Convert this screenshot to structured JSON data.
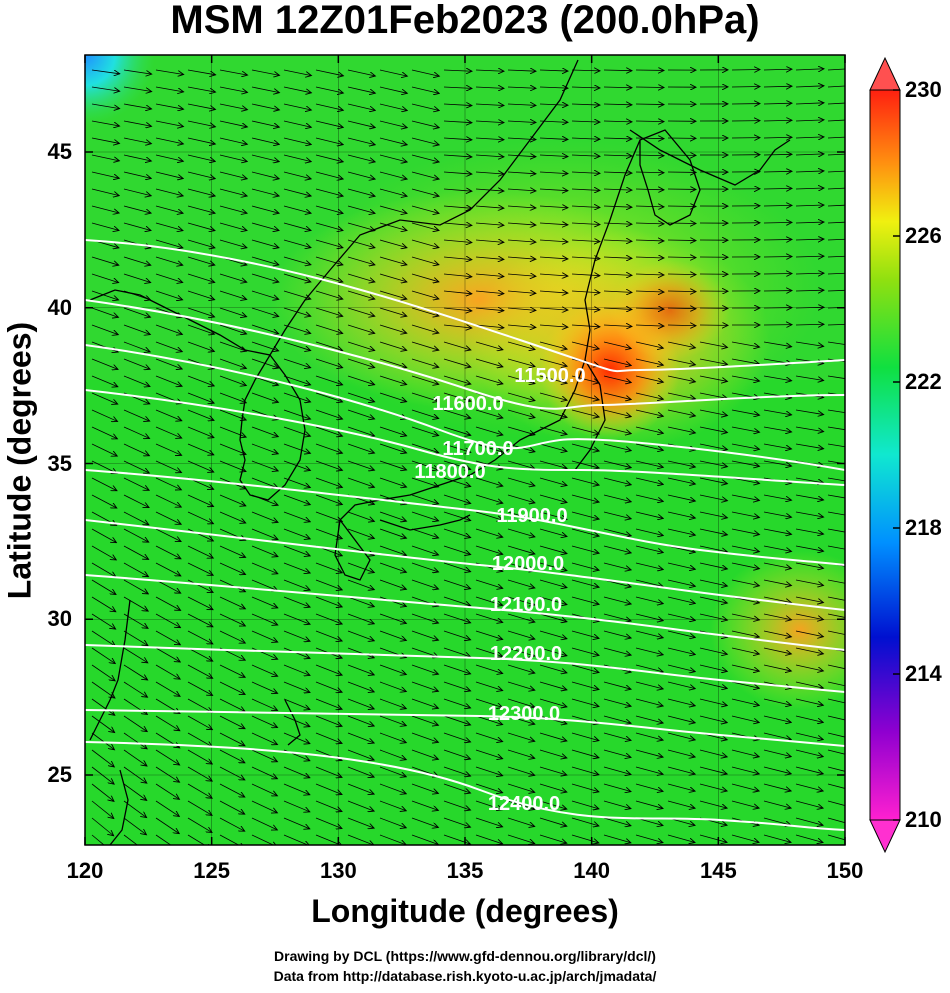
{
  "title": "MSM 12Z01Feb2023 (200.0hPa)",
  "xaxis": {
    "label": "Longitude (degrees)",
    "ticks": [
      "120",
      "125",
      "130",
      "135",
      "140",
      "145",
      "150"
    ]
  },
  "yaxis": {
    "label": "Latitude  (degrees)",
    "ticks": [
      "45",
      "40",
      "35",
      "30",
      "25"
    ]
  },
  "colorbar": {
    "ticks": [
      "230",
      "226",
      "222",
      "218",
      "214",
      "210"
    ]
  },
  "contours": [
    "11500.0",
    "11600.0",
    "11700.0",
    "11800.0",
    "11900.0",
    "12000.0",
    "12100.0",
    "12200.0",
    "12300.0",
    "12400.0"
  ],
  "credits": {
    "line1": "Drawing by DCL (https://www.gfd-dennou.org/library/dcl/)",
    "line2": "Data from http://database.rish.kyoto-u.ac.jp/arch/jmadata/"
  },
  "colors": {
    "background_field": "#22dd22",
    "warm_core": "#ff3300",
    "contour": "#ffffff"
  }
}
